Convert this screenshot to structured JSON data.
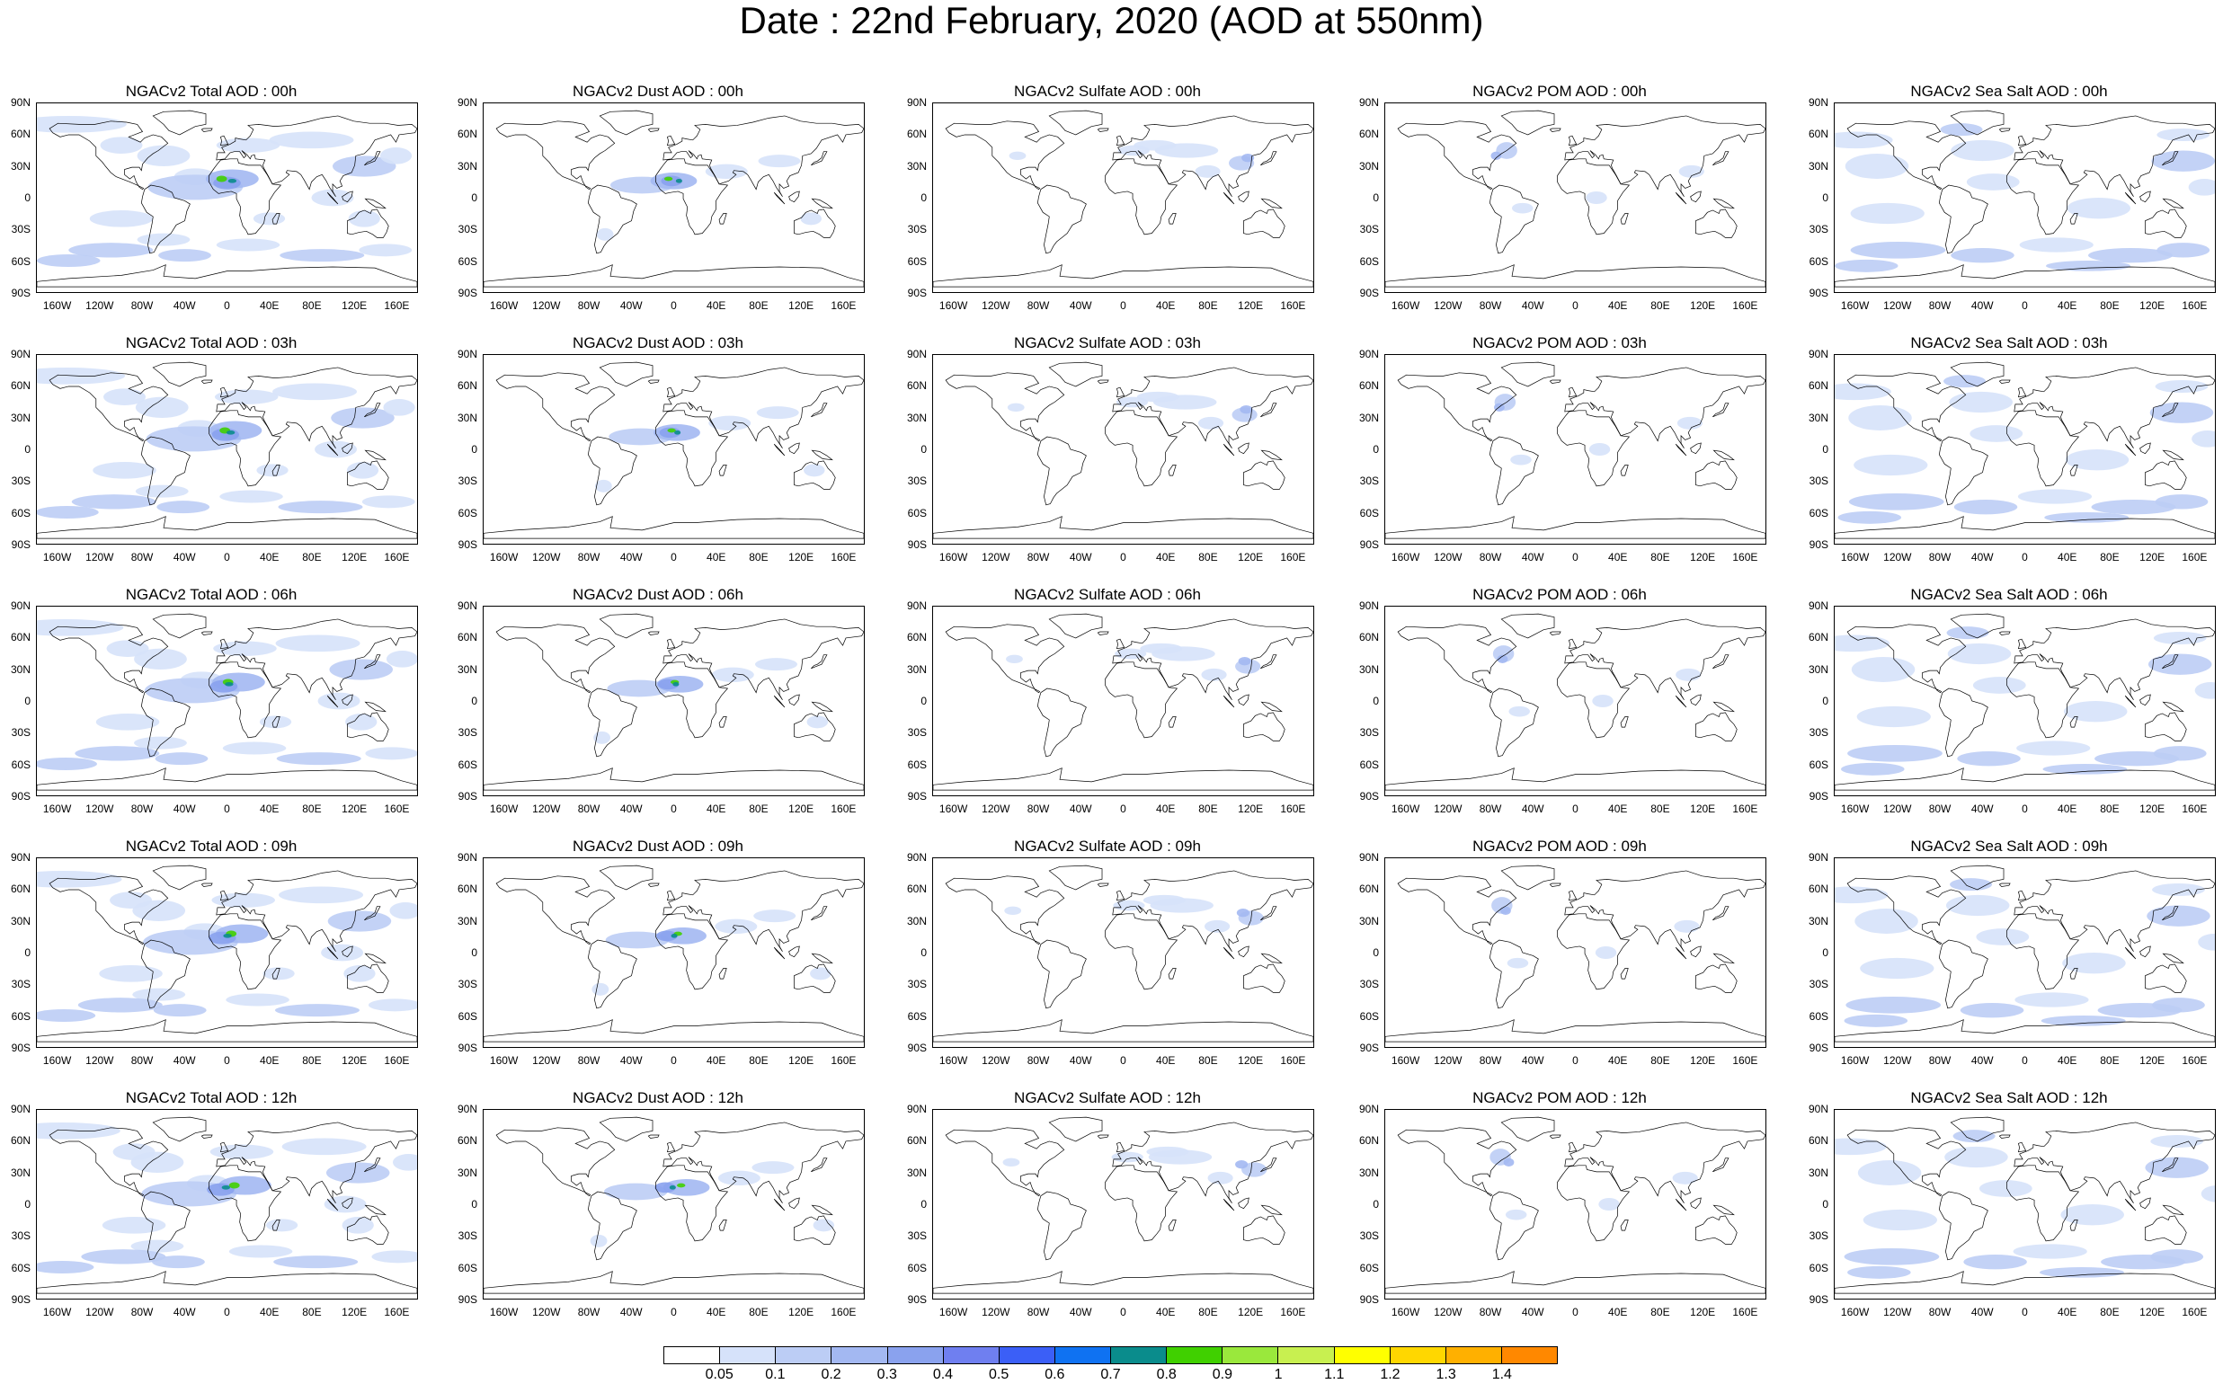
{
  "figure_title": "Date : 22nd February, 2020 (AOD at 550nm)",
  "lat_labels": [
    "90N",
    "60N",
    "30N",
    "0",
    "30S",
    "60S",
    "90S"
  ],
  "lon_labels": [
    "160W",
    "120W",
    "80W",
    "40W",
    "0",
    "40E",
    "80E",
    "120E",
    "160E"
  ],
  "panel_titles": [
    [
      "NGACv2 Total AOD : 00h",
      "NGACv2 Dust AOD : 00h",
      "NGACv2 Sulfate AOD : 00h",
      "NGACv2 POM AOD : 00h",
      "NGACv2 Sea Salt AOD : 00h"
    ],
    [
      "NGACv2 Total AOD : 03h",
      "NGACv2 Dust AOD : 03h",
      "NGACv2 Sulfate AOD : 03h",
      "NGACv2 POM AOD : 03h",
      "NGACv2 Sea Salt AOD : 03h"
    ],
    [
      "NGACv2 Total AOD : 06h",
      "NGACv2 Dust AOD : 06h",
      "NGACv2 Sulfate AOD : 06h",
      "NGACv2 POM AOD : 06h",
      "NGACv2 Sea Salt AOD : 06h"
    ],
    [
      "NGACv2 Total AOD : 09h",
      "NGACv2 Dust AOD : 09h",
      "NGACv2 Sulfate AOD : 09h",
      "NGACv2 POM AOD : 09h",
      "NGACv2 Sea Salt  AOD : 09h"
    ],
    [
      "NGACv2 Total AOD : 12h",
      "NGACv2 Dust AOD : 12h",
      "NGACv2 Sulfate AOD : 12h",
      "NGACv2 POM  AOD : 12h",
      "NGACv2 Sea Salt AOD : 12h"
    ]
  ],
  "colorbar": {
    "labels": [
      "0.05",
      "0.1",
      "0.2",
      "0.3",
      "0.4",
      "0.5",
      "0.6",
      "0.7",
      "0.8",
      "0.9",
      "1",
      "1.1",
      "1.2",
      "1.3",
      "1.4"
    ],
    "colors": [
      "#ffffff",
      "#d6e2fa",
      "#bccdf5",
      "#a3b8f2",
      "#8aa2ee",
      "#6f7ff0",
      "#3b5ff7",
      "#0f72f2",
      "#0a8c8c",
      "#40d000",
      "#9ae83c",
      "#c8f050",
      "#ffff00",
      "#ffd700",
      "#ffb000",
      "#ff8800",
      "#ff6600",
      "#ff2a00"
    ]
  }
}
